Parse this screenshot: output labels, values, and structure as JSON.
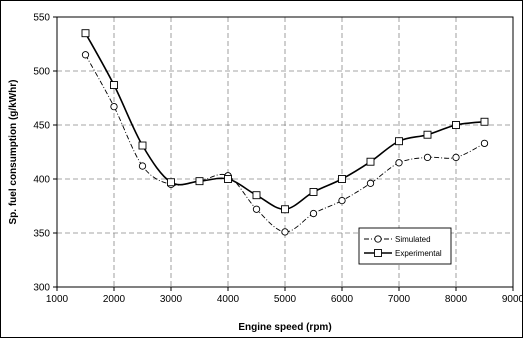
{
  "chart_data": {
    "type": "line",
    "xlabel": "Engine speed (rpm)",
    "ylabel": "Sp. fuel consumption (g/kWhr)",
    "xlim": [
      1000,
      9000
    ],
    "ylim": [
      300,
      550
    ],
    "x_ticks": [
      1000,
      2000,
      3000,
      4000,
      5000,
      6000,
      7000,
      8000,
      9000
    ],
    "y_ticks": [
      300,
      350,
      400,
      450,
      500,
      550
    ],
    "grid": true,
    "legend": "bottom-right",
    "series": [
      {
        "name": "Simulated",
        "style": "dash-dot",
        "marker": "circle",
        "x": [
          1500,
          2000,
          2500,
          3000,
          3500,
          4000,
          4500,
          5000,
          5500,
          6000,
          6500,
          7000,
          7500,
          8000,
          8500
        ],
        "values": [
          515,
          467,
          412,
          395,
          398,
          403,
          372,
          351,
          368,
          380,
          396,
          415,
          420,
          420,
          433
        ]
      },
      {
        "name": "Experimental",
        "style": "solid",
        "marker": "square",
        "x": [
          1500,
          2000,
          2500,
          3000,
          3500,
          4000,
          4500,
          5000,
          5500,
          6000,
          6500,
          7000,
          7500,
          8000,
          8500
        ],
        "values": [
          535,
          487,
          431,
          397,
          398,
          400,
          385,
          372,
          388,
          400,
          416,
          435,
          441,
          450,
          453
        ]
      }
    ]
  }
}
